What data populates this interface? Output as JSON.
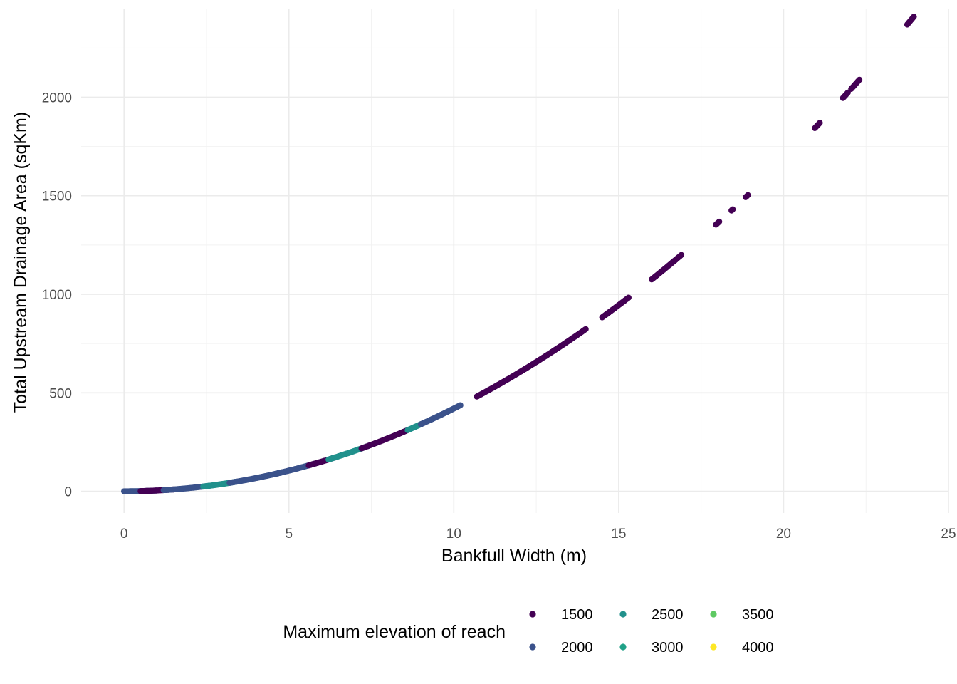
{
  "chart_data": {
    "type": "scatter",
    "title": "",
    "xlabel": "Bankfull Width (m)",
    "ylabel": "Total Upstream Drainage Area (sqKm)",
    "xlim": [
      -1.3,
      25.0
    ],
    "ylim": [
      -110,
      2450
    ],
    "x_ticks": [
      0,
      5,
      10,
      15,
      20,
      25
    ],
    "y_ticks": [
      0,
      500,
      1000,
      1500,
      2000
    ],
    "x_tick_labels": [
      "0",
      "5",
      "10",
      "15",
      "20",
      "25"
    ],
    "y_tick_labels": [
      "0",
      "500",
      "1000",
      "1500",
      "2000"
    ],
    "grid": true,
    "legend": {
      "title": "Maximum elevation of reach",
      "position": "bottom",
      "entries": [
        {
          "label": "1500",
          "color": "#440154"
        },
        {
          "label": "2000",
          "color": "#3b528b"
        },
        {
          "label": "2500",
          "color": "#21918c"
        },
        {
          "label": "3000",
          "color": "#1fa187"
        },
        {
          "label": "3500",
          "color": "#5ec962"
        },
        {
          "label": "4000",
          "color": "#fde725"
        }
      ]
    },
    "trend": "drainage area ≈ 4.2 × width^2",
    "segments": [
      {
        "x": [
          0.0,
          1.0
        ],
        "color": "#3b528b"
      },
      {
        "x": [
          0.5,
          1.5
        ],
        "color": "#440154"
      },
      {
        "x": [
          1.2,
          2.6
        ],
        "color": "#3b528b"
      },
      {
        "x": [
          2.4,
          3.4
        ],
        "color": "#21918c"
      },
      {
        "x": [
          3.2,
          4.8
        ],
        "color": "#3b528b"
      },
      {
        "x": [
          4.6,
          5.8
        ],
        "color": "#3b528b"
      },
      {
        "x": [
          5.6,
          6.4
        ],
        "color": "#440154"
      },
      {
        "x": [
          6.2,
          7.4
        ],
        "color": "#21918c"
      },
      {
        "x": [
          7.2,
          8.0
        ],
        "color": "#440154"
      },
      {
        "x": [
          8.0,
          8.6
        ],
        "color": "#440154"
      },
      {
        "x": [
          8.6,
          9.0
        ],
        "color": "#21918c"
      },
      {
        "x": [
          9.0,
          10.2
        ],
        "color": "#3b528b"
      },
      {
        "x": [
          10.7,
          12.6
        ],
        "color": "#440154"
      },
      {
        "x": [
          12.6,
          14.0
        ],
        "color": "#440154"
      },
      {
        "x": [
          14.5,
          15.3
        ],
        "color": "#440154"
      },
      {
        "x": [
          16.0,
          16.9
        ],
        "color": "#440154"
      },
      {
        "x": [
          17.95,
          18.05
        ],
        "color": "#440154"
      },
      {
        "x": [
          18.42,
          18.46
        ],
        "color": "#440154"
      },
      {
        "x": [
          18.85,
          18.92
        ],
        "color": "#440154"
      },
      {
        "x": [
          20.95,
          21.1
        ],
        "color": "#440154"
      },
      {
        "x": [
          21.8,
          21.95
        ],
        "color": "#440154"
      },
      {
        "x": [
          22.05,
          22.3
        ],
        "color": "#440154"
      },
      {
        "x": [
          23.75,
          23.95
        ],
        "color": "#440154"
      }
    ]
  }
}
